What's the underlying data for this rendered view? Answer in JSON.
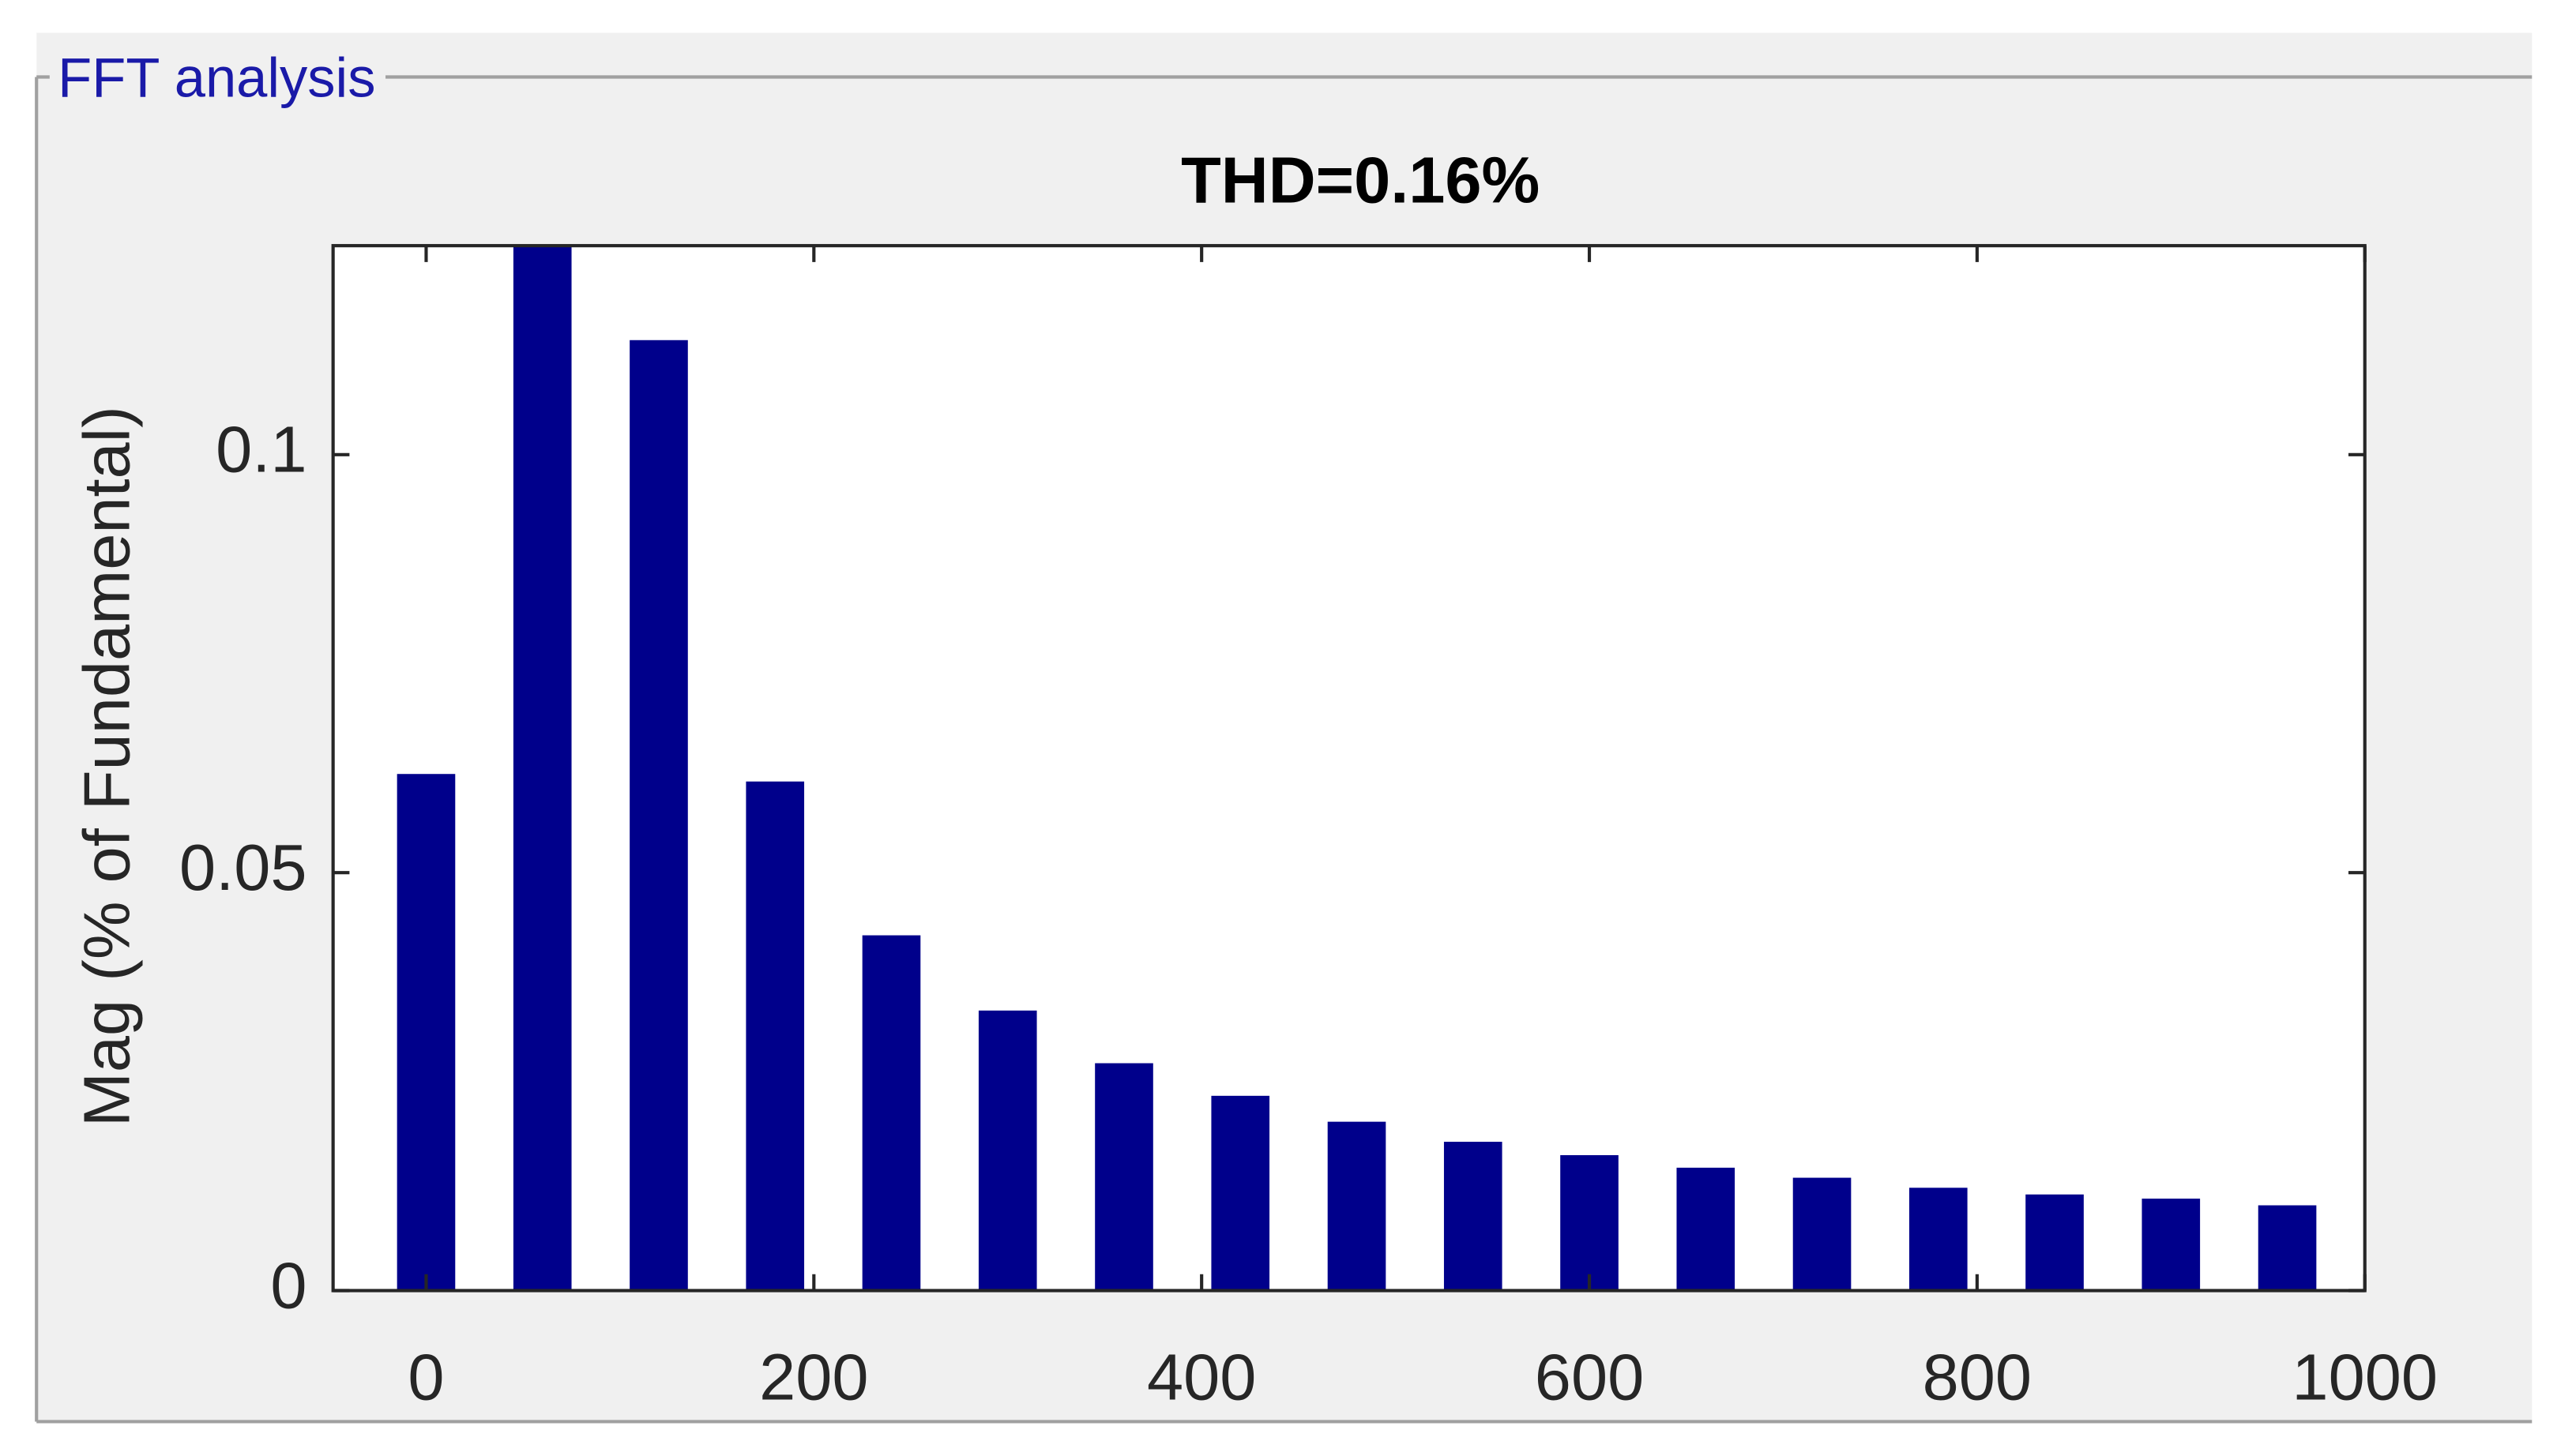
{
  "panel_label": "FFT analysis",
  "chart_data": {
    "type": "bar",
    "title": "THD=0.16%",
    "y_label": "Mag (% of Fundamental)",
    "x": [
      0,
      60,
      120,
      180,
      240,
      300,
      360,
      420,
      480,
      540,
      600,
      660,
      720,
      780,
      840,
      900,
      960
    ],
    "values": [
      0.0618,
      0.125,
      0.1137,
      0.0609,
      0.0425,
      0.0335,
      0.0272,
      0.0233,
      0.0202,
      0.0178,
      0.0162,
      0.0147,
      0.0135,
      0.0123,
      0.0115,
      0.011,
      0.0102
    ],
    "color": "#00008b",
    "xlim": [
      -48,
      1000
    ],
    "xticks": [
      0,
      200,
      400,
      600,
      800,
      1000
    ],
    "ylim": [
      0,
      0.125
    ],
    "yticks": [
      0,
      0.05,
      0.1
    ],
    "grid": false
  }
}
